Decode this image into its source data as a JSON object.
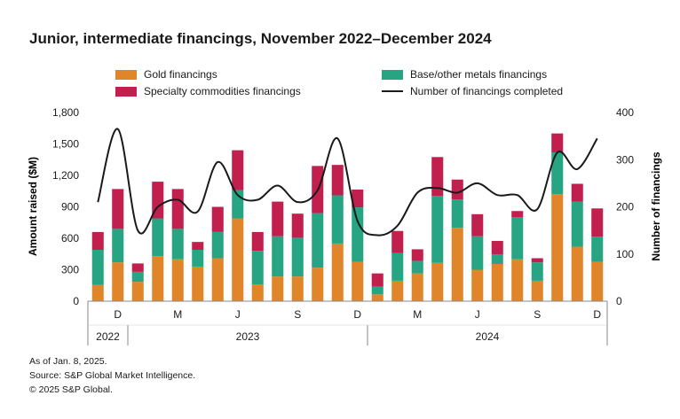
{
  "title": "Junior, intermediate financings, November 2022–December 2024",
  "colors": {
    "gold": "#E0852A",
    "base": "#27A582",
    "specialty": "#C1204F",
    "line": "#1a1a1a",
    "axis": "#888888"
  },
  "legend": {
    "gold": "Gold financings",
    "base": "Base/other metals financings",
    "specialty": "Specialty commodities financings",
    "line": "Number of financings completed"
  },
  "footer": {
    "line1": "As of Jan. 8, 2025.",
    "line2": "Source: S&P Global Market Intelligence.",
    "line3": "© 2025 S&P Global."
  },
  "chart_data": {
    "type": "bar",
    "stacked": true,
    "title": "Junior, intermediate financings, November 2022–December 2024",
    "ylabel": "Amount raised ($M)",
    "y2label": "Number of financings",
    "ylim": [
      0,
      1800
    ],
    "y2lim": [
      0,
      400
    ],
    "yticks": [
      "0",
      "300",
      "600",
      "900",
      "1,200",
      "1,500",
      "1,800"
    ],
    "y2ticks": [
      "0",
      "100",
      "200",
      "300",
      "400"
    ],
    "categories": [
      "Nov 2022",
      "Dec 2022",
      "Jan 2023",
      "Feb 2023",
      "Mar 2023",
      "Apr 2023",
      "May 2023",
      "Jun 2023",
      "Jul 2023",
      "Aug 2023",
      "Sep 2023",
      "Oct 2023",
      "Nov 2023",
      "Dec 2023",
      "Jan 2024",
      "Feb 2024",
      "Mar 2024",
      "Apr 2024",
      "May 2024",
      "Jun 2024",
      "Jul 2024",
      "Aug 2024",
      "Sep 2024",
      "Oct 2024",
      "Nov 2024",
      "Dec 2024"
    ],
    "month_labels": [
      "",
      "D",
      "",
      "",
      "M",
      "",
      "",
      "J",
      "",
      "",
      "S",
      "",
      "",
      "D",
      "",
      "",
      "M",
      "",
      "",
      "J",
      "",
      "",
      "S",
      "",
      "",
      "D"
    ],
    "year_groups": [
      {
        "label": "2022",
        "start": 0,
        "end": 1
      },
      {
        "label": "2023",
        "start": 2,
        "end": 13
      },
      {
        "label": "2024",
        "start": 14,
        "end": 25
      }
    ],
    "series": [
      {
        "name": "Gold financings",
        "key": "gold",
        "values": [
          155,
          370,
          185,
          430,
          400,
          330,
          410,
          790,
          160,
          235,
          235,
          320,
          550,
          375,
          65,
          195,
          265,
          365,
          700,
          300,
          355,
          400,
          195,
          1020,
          520,
          375
        ]
      },
      {
        "name": "Base/other metals financings",
        "key": "base",
        "values": [
          335,
          320,
          95,
          360,
          290,
          160,
          250,
          270,
          320,
          385,
          370,
          520,
          460,
          520,
          75,
          265,
          120,
          640,
          270,
          320,
          90,
          400,
          175,
          400,
          430,
          240
        ]
      },
      {
        "name": "Specialty commodities financings",
        "key": "specialty",
        "values": [
          170,
          380,
          80,
          350,
          380,
          75,
          240,
          380,
          180,
          330,
          230,
          450,
          290,
          170,
          125,
          210,
          110,
          370,
          190,
          210,
          130,
          60,
          40,
          180,
          170,
          270
        ]
      }
    ],
    "line": {
      "name": "Number of financings completed",
      "values": [
        210,
        365,
        150,
        200,
        215,
        190,
        295,
        225,
        215,
        245,
        210,
        235,
        345,
        170,
        140,
        160,
        230,
        240,
        230,
        250,
        225,
        225,
        195,
        315,
        280,
        345
      ]
    }
  }
}
